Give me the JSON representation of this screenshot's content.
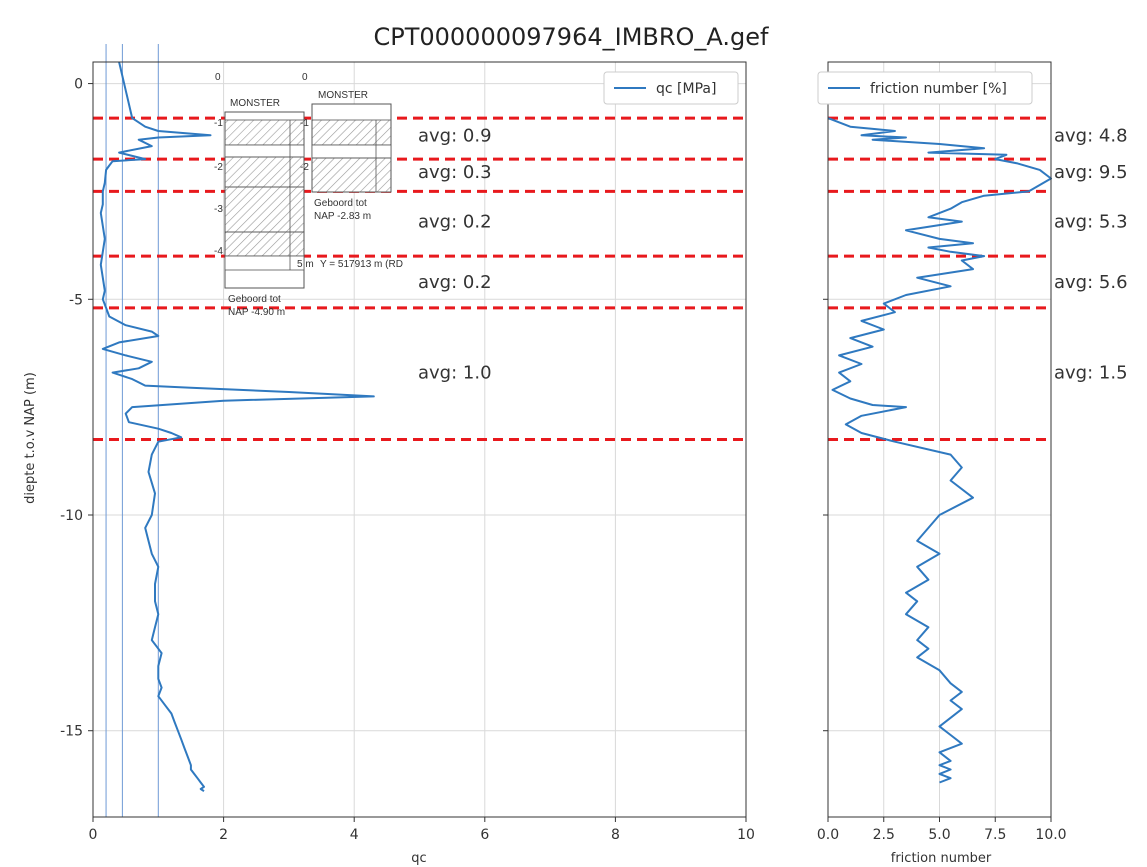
{
  "chart_data": {
    "title": "CPT000000097964_IMBRO_A.gef",
    "ylabel": "diepte t.o.v NAP (m)",
    "ylim": [
      -17,
      0.5
    ],
    "yticks": [
      0,
      -5,
      -10,
      -15
    ],
    "colors": {
      "series": "#2f79c0",
      "layer": "#e8191d",
      "grid": "#d9d9d9",
      "ref": "#6f9ad6"
    },
    "layer_boundaries": [
      -0.8,
      -1.75,
      -2.5,
      -4.0,
      -5.2,
      -8.25
    ],
    "panels": [
      {
        "type": "line",
        "xlabel": "qc",
        "xlim": [
          0,
          10
        ],
        "xticks": [
          0,
          2,
          4,
          6,
          8,
          10
        ],
        "legend": "qc [MPa]",
        "legend_position": "top-right",
        "vlines": [
          0.2,
          0.45,
          1.0
        ],
        "averages": [
          {
            "label": "avg: 0.9",
            "y": -1.2
          },
          {
            "label": "avg: 0.3",
            "y": -2.05
          },
          {
            "label": "avg: 0.2",
            "y": -3.2
          },
          {
            "label": "avg: 0.2",
            "y": -4.6
          },
          {
            "label": "avg: 1.0",
            "y": -6.7
          }
        ],
        "x": [
          0.4,
          0.6,
          0.8,
          1.0,
          1.8,
          1.0,
          0.7,
          0.9,
          0.4,
          0.8,
          0.3,
          0.25,
          0.2,
          0.18,
          0.15,
          0.15,
          0.12,
          0.15,
          0.18,
          0.15,
          0.12,
          0.15,
          0.18,
          0.15,
          0.2,
          0.25,
          0.5,
          0.9,
          1.0,
          0.4,
          0.15,
          0.5,
          0.9,
          0.7,
          0.3,
          0.6,
          0.8,
          1.5,
          3.0,
          4.3,
          2.0,
          0.6,
          0.5,
          0.55,
          1.0,
          1.2,
          1.35,
          1.0,
          0.9,
          0.85,
          0.95,
          0.9,
          0.8,
          0.85,
          0.9,
          1.0,
          0.95,
          0.95,
          1.0,
          0.95,
          0.9,
          1.0,
          1.05,
          1.0,
          1.0,
          1.05,
          1.0,
          1.1,
          1.2,
          1.25,
          1.3,
          1.35,
          1.4,
          1.45,
          1.5,
          1.5,
          1.55,
          1.6,
          1.65,
          1.7,
          1.65,
          1.7
        ],
        "y": [
          0.5,
          -0.8,
          -1.0,
          -1.1,
          -1.2,
          -1.25,
          -1.3,
          -1.45,
          -1.6,
          -1.75,
          -1.8,
          -1.9,
          -2.0,
          -2.3,
          -2.5,
          -2.8,
          -3.0,
          -3.3,
          -3.6,
          -3.9,
          -4.2,
          -4.5,
          -4.8,
          -5.0,
          -5.2,
          -5.4,
          -5.6,
          -5.75,
          -5.85,
          -6.0,
          -6.15,
          -6.3,
          -6.45,
          -6.6,
          -6.7,
          -6.85,
          -7.0,
          -7.05,
          -7.15,
          -7.25,
          -7.35,
          -7.5,
          -7.65,
          -7.85,
          -8.0,
          -8.1,
          -8.2,
          -8.3,
          -8.6,
          -9.0,
          -9.5,
          -10.0,
          -10.3,
          -10.6,
          -10.9,
          -11.2,
          -11.6,
          -12.0,
          -12.3,
          -12.6,
          -12.9,
          -13.1,
          -13.2,
          -13.5,
          -13.8,
          -14.0,
          -14.2,
          -14.4,
          -14.6,
          -14.8,
          -15.0,
          -15.2,
          -15.4,
          -15.6,
          -15.8,
          -15.9,
          -16.0,
          -16.1,
          -16.2,
          -16.3,
          -16.35,
          -16.4
        ]
      },
      {
        "type": "line",
        "xlabel": "friction number",
        "xlim": [
          0,
          10
        ],
        "xticks": [
          0.0,
          2.5,
          5.0,
          7.5,
          10.0
        ],
        "legend": "friction number [%]",
        "legend_position": "top-left",
        "averages": [
          {
            "label": "avg: 4.8",
            "y": -1.2
          },
          {
            "label": "avg: 9.5",
            "y": -2.05
          },
          {
            "label": "avg: 5.3",
            "y": -3.2
          },
          {
            "label": "avg: 5.6",
            "y": -4.6
          },
          {
            "label": "avg: 1.5",
            "y": -6.7
          }
        ],
        "x": [
          0.0,
          1.0,
          3.0,
          1.5,
          3.5,
          2.0,
          5.0,
          7.0,
          4.5,
          8.0,
          7.5,
          8.5,
          9.5,
          10.0,
          9.0,
          7.0,
          6.0,
          5.5,
          4.5,
          6.0,
          3.5,
          5.0,
          6.5,
          4.5,
          5.5,
          7.0,
          6.0,
          6.5,
          4.0,
          5.5,
          3.5,
          2.5,
          3.0,
          1.5,
          2.5,
          1.0,
          2.0,
          0.5,
          1.5,
          0.5,
          1.0,
          0.2,
          1.0,
          2.0,
          3.5,
          1.5,
          0.8,
          1.5,
          3.0,
          5.5,
          6.0,
          5.5,
          6.5,
          5.0,
          4.5,
          4.0,
          5.0,
          4.0,
          4.5,
          3.5,
          4.0,
          3.5,
          4.5,
          4.0,
          4.5,
          4.0,
          5.0,
          5.5,
          6.0,
          5.5,
          6.0,
          5.5,
          5.0,
          5.5,
          6.0,
          5.0,
          5.5,
          5.0,
          5.5,
          5.0,
          5.5,
          5.0
        ],
        "y": [
          -0.8,
          -1.0,
          -1.1,
          -1.2,
          -1.25,
          -1.3,
          -1.4,
          -1.5,
          -1.6,
          -1.65,
          -1.75,
          -1.85,
          -2.0,
          -2.2,
          -2.5,
          -2.6,
          -2.75,
          -2.9,
          -3.1,
          -3.2,
          -3.4,
          -3.6,
          -3.7,
          -3.8,
          -3.9,
          -4.0,
          -4.1,
          -4.3,
          -4.5,
          -4.7,
          -4.9,
          -5.1,
          -5.3,
          -5.5,
          -5.7,
          -5.9,
          -6.1,
          -6.3,
          -6.5,
          -6.7,
          -6.9,
          -7.1,
          -7.3,
          -7.45,
          -7.5,
          -7.7,
          -7.9,
          -8.1,
          -8.3,
          -8.6,
          -8.9,
          -9.2,
          -9.6,
          -10.0,
          -10.3,
          -10.6,
          -10.9,
          -11.2,
          -11.5,
          -11.8,
          -12.0,
          -12.3,
          -12.6,
          -12.9,
          -13.1,
          -13.3,
          -13.6,
          -13.9,
          -14.1,
          -14.3,
          -14.5,
          -14.7,
          -14.9,
          -15.1,
          -15.3,
          -15.5,
          -15.7,
          -15.8,
          -15.9,
          -16.0,
          -16.1,
          -16.2
        ]
      }
    ],
    "inset": {
      "axis_top_left": "0",
      "axis_top_right": "0",
      "left_header": "MONSTER",
      "right_header": "MONSTER",
      "left_depths": [
        "-1",
        "-2",
        "-3",
        "-4"
      ],
      "right_depths": [
        "-1",
        "-2"
      ],
      "right_caption_1": "Geboord tot",
      "right_caption_2": "NAP -2.83 m",
      "left_caption_1": "Geboord tot",
      "left_caption_2": "NAP -4.90 m",
      "coordinate_text": "Y = 517913 m (RD",
      "scale_text": "5 m"
    }
  }
}
